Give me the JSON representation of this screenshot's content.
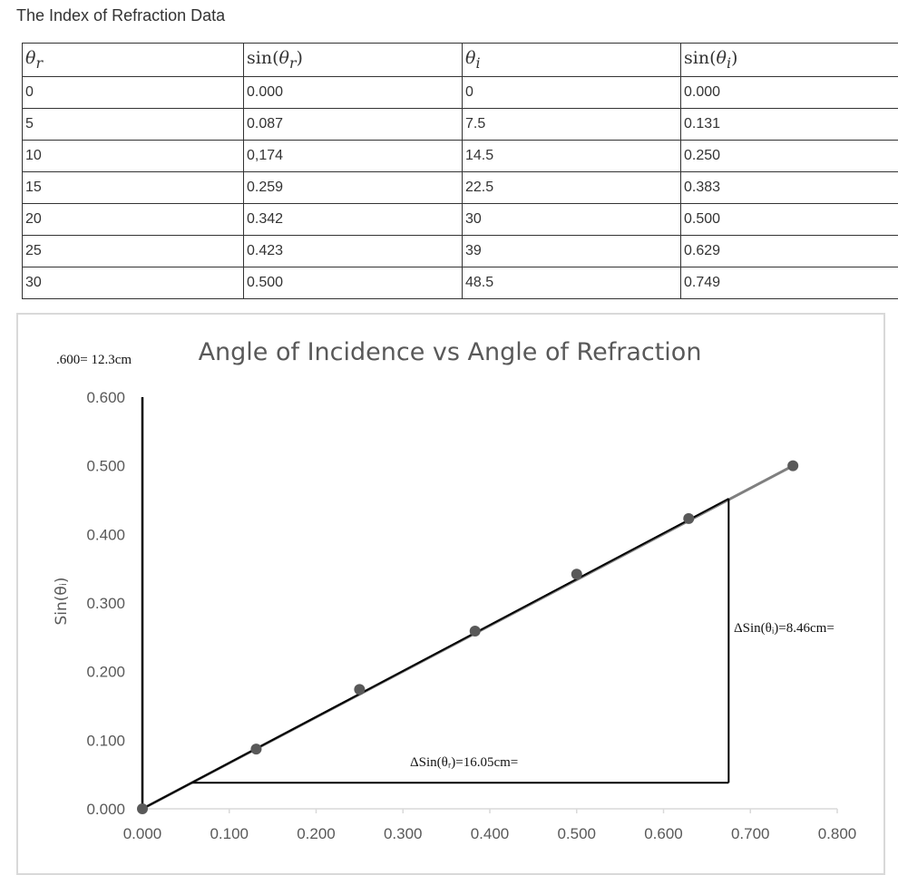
{
  "page": {
    "title": "The Index of Refraction Data"
  },
  "table": {
    "headers": [
      {
        "prefix": "",
        "symbol": "θ",
        "sub": "r",
        "suffix": ""
      },
      {
        "prefix": "sin(",
        "symbol": "θ",
        "sub": "r",
        "suffix": ")"
      },
      {
        "prefix": "",
        "symbol": "θ",
        "sub": "i",
        "suffix": ""
      },
      {
        "prefix": "sin(",
        "symbol": "θ",
        "sub": "i",
        "suffix": ")"
      }
    ],
    "rows": [
      [
        "0",
        "0.000",
        "0",
        "0.000"
      ],
      [
        "5",
        "0.087",
        "7.5",
        "0.131"
      ],
      [
        "10",
        "0,174",
        "14.5",
        "0.250"
      ],
      [
        "15",
        "0.259",
        "22.5",
        "0.383"
      ],
      [
        "20",
        "0.342",
        "30",
        "0.500"
      ],
      [
        "25",
        "0.423",
        "39",
        "0.629"
      ],
      [
        "30",
        "0.500",
        "48.5",
        "0.749"
      ]
    ]
  },
  "chart_data": {
    "type": "scatter",
    "title": "Angle of Incidence vs Angle of Refraction",
    "xlabel": "",
    "ylabel": "Sin(θᵢ)",
    "xlim": [
      0,
      0.8
    ],
    "ylim": [
      0,
      0.6
    ],
    "xticks": [
      "0.000",
      "0.100",
      "0.200",
      "0.300",
      "0.400",
      "0.500",
      "0.600",
      "0.700",
      "0.800"
    ],
    "yticks": [
      "0.000",
      "0.100",
      "0.200",
      "0.300",
      "0.400",
      "0.500",
      "0.600"
    ],
    "points": [
      {
        "x": 0.0,
        "y": 0.0
      },
      {
        "x": 0.131,
        "y": 0.087
      },
      {
        "x": 0.25,
        "y": 0.174
      },
      {
        "x": 0.383,
        "y": 0.259
      },
      {
        "x": 0.5,
        "y": 0.342
      },
      {
        "x": 0.629,
        "y": 0.423
      },
      {
        "x": 0.749,
        "y": 0.5
      }
    ],
    "trendline": {
      "x1": 0.0,
      "y1": 0.0,
      "x2": 0.749,
      "y2": 0.5
    },
    "best_fit_line": {
      "x1": 0.0,
      "y1": 0.0,
      "x2": 0.675,
      "y2": 0.452
    },
    "slope_triangle": {
      "x_left": 0.057,
      "x_right": 0.675,
      "y_bottom": 0.038,
      "y_top": 0.452
    },
    "annotations": {
      "scale_note": ".600= 12.3cm",
      "horizontal_leg": "ΔSin(θᵣ)=16.05cm=",
      "vertical_leg": "ΔSin(θᵢ)=8.46cm="
    },
    "grid": false,
    "legend": "none",
    "colors": {
      "marker": "#595959",
      "trendline": "#7f7f7f",
      "drawn_lines": "#000000",
      "axis": "#d9d9d9",
      "text": "#595959"
    }
  }
}
